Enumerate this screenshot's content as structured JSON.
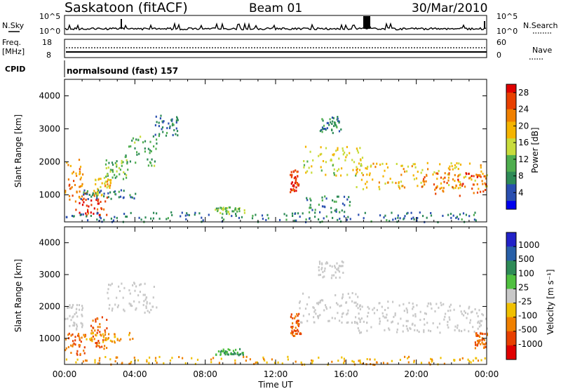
{
  "header": {
    "station": "Saskatoon  (fitACF)",
    "beam": "Beam 01",
    "date": "30/Mar/2010"
  },
  "strips": {
    "nsky_label": "N.Sky",
    "nsky_ticks": [
      "10^5",
      "10^0"
    ],
    "nsearch_label": "N.Search",
    "nsearch_ticks": [
      "10^5",
      "10^0"
    ],
    "freq_label_1": "Freq.",
    "freq_label_2": "[MHz]",
    "freq_ticks": [
      "18",
      "8"
    ],
    "nave_label": "Nave",
    "nave_ticks": [
      "60",
      "0"
    ],
    "cpid_label": "CPID",
    "cpid_text": "normalsound (fast) 157"
  },
  "colors": {
    "power_scale": [
      "#0000ee",
      "#2a4fb0",
      "#2e8b57",
      "#4fae4f",
      "#c8dc3c",
      "#f5b400",
      "#f08000",
      "#e84000",
      "#e00000"
    ],
    "velocity_scale": [
      "#2222c8",
      "#2860a8",
      "#2e8b57",
      "#50c040",
      "#c8c8c8",
      "#f0c000",
      "#f08000",
      "#e84000",
      "#e00000"
    ]
  },
  "chart_data": [
    {
      "type": "heatmap",
      "title": "",
      "xlabel": "Time UT",
      "ylabel": "Slant Range [km]",
      "x_ticks": [
        "00:00",
        "04:00",
        "08:00",
        "12:00",
        "16:00",
        "20:00",
        "00:00"
      ],
      "y_ticks": [
        "1000",
        "2000",
        "3000",
        "4000"
      ],
      "xlim_hours": [
        0,
        24
      ],
      "ylim": [
        180,
        4500
      ],
      "colorbar": {
        "label": "Power [dB]",
        "ticks": [
          "28",
          "24",
          "20",
          "16",
          "12",
          "8",
          "4"
        ]
      },
      "regions": [
        {
          "t0": 0.0,
          "t1": 1.0,
          "r0": 700,
          "r1": 2100,
          "level": 22
        },
        {
          "t0": 0.6,
          "t1": 2.4,
          "r0": 400,
          "r1": 1100,
          "level": 27
        },
        {
          "t0": 1.6,
          "t1": 2.6,
          "r0": 1000,
          "r1": 1600,
          "level": 18
        },
        {
          "t0": 2.3,
          "t1": 3.6,
          "r0": 1500,
          "r1": 2100,
          "level": 12
        },
        {
          "t0": 3.4,
          "t1": 5.2,
          "r0": 1900,
          "r1": 2800,
          "level": 10
        },
        {
          "t0": 5.0,
          "t1": 6.5,
          "r0": 2800,
          "r1": 3450,
          "level": 6
        },
        {
          "t0": 0.9,
          "t1": 4.2,
          "r0": 900,
          "r1": 1200,
          "level": 7
        },
        {
          "t0": 0.0,
          "t1": 24.0,
          "r0": 200,
          "r1": 500,
          "level": 6
        },
        {
          "t0": 8.5,
          "t1": 10.2,
          "r0": 450,
          "r1": 650,
          "level": 12
        },
        {
          "t0": 12.8,
          "t1": 13.3,
          "r0": 1100,
          "r1": 1800,
          "level": 28
        },
        {
          "t0": 13.6,
          "t1": 16.2,
          "r0": 500,
          "r1": 1000,
          "level": 8
        },
        {
          "t0": 13.5,
          "t1": 17.0,
          "r0": 1600,
          "r1": 2500,
          "level": 16
        },
        {
          "t0": 14.5,
          "t1": 15.7,
          "r0": 2900,
          "r1": 3400,
          "level": 8
        },
        {
          "t0": 16.5,
          "t1": 24.0,
          "r0": 1200,
          "r1": 2000,
          "level": 18
        },
        {
          "t0": 20.0,
          "t1": 24.0,
          "r0": 1000,
          "r1": 1700,
          "level": 25
        }
      ]
    },
    {
      "type": "heatmap",
      "title": "",
      "xlabel": "Time UT",
      "ylabel": "Slant Range [km]",
      "x_ticks": [
        "00:00",
        "04:00",
        "08:00",
        "12:00",
        "16:00",
        "20:00",
        "00:00"
      ],
      "y_ticks": [
        "1000",
        "2000",
        "3000",
        "4000"
      ],
      "xlim_hours": [
        0,
        24
      ],
      "ylim": [
        180,
        4500
      ],
      "colorbar": {
        "label": "Velocity [m s⁻¹]",
        "ticks": [
          "1000",
          "500",
          "100",
          "25",
          "-25",
          "-100",
          "-500",
          "-1000"
        ]
      },
      "regions": [
        {
          "t0": 0.0,
          "t1": 1.2,
          "r0": 500,
          "r1": 1200,
          "level": -300
        },
        {
          "t0": 0.0,
          "t1": 1.0,
          "r0": 1300,
          "r1": 2100,
          "level": 0
        },
        {
          "t0": 1.4,
          "t1": 2.5,
          "r0": 700,
          "r1": 1700,
          "level": -300
        },
        {
          "t0": 2.4,
          "t1": 5.2,
          "r0": 1800,
          "r1": 2800,
          "level": 0
        },
        {
          "t0": 1.0,
          "t1": 4.0,
          "r0": 900,
          "r1": 1200,
          "level": -60
        },
        {
          "t0": 0.0,
          "t1": 24.0,
          "r0": 200,
          "r1": 450,
          "level": -60
        },
        {
          "t0": 8.5,
          "t1": 10.2,
          "r0": 500,
          "r1": 700,
          "level": 60
        },
        {
          "t0": 12.8,
          "t1": 13.4,
          "r0": 1100,
          "r1": 1800,
          "level": -300
        },
        {
          "t0": 13.3,
          "t1": 16.8,
          "r0": 1500,
          "r1": 2500,
          "level": 0
        },
        {
          "t0": 14.4,
          "t1": 15.8,
          "r0": 2900,
          "r1": 3450,
          "level": 0
        },
        {
          "t0": 16.5,
          "t1": 24.0,
          "r0": 1200,
          "r1": 2200,
          "level": 0
        },
        {
          "t0": 23.3,
          "t1": 24.0,
          "r0": 700,
          "r1": 1200,
          "level": -300
        }
      ]
    }
  ]
}
